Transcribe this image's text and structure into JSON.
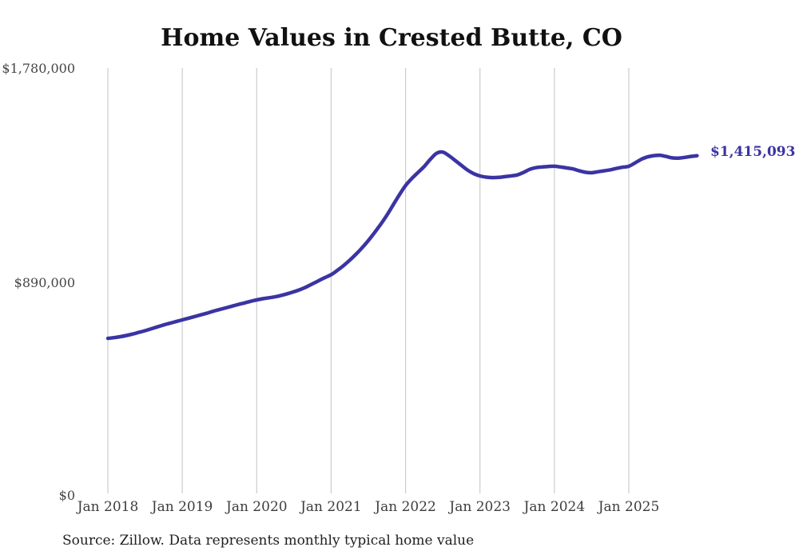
{
  "chart_data": {
    "type": "line",
    "title": "Home Values in Crested Butte, CO",
    "source": "Source: Zillow. Data represents monthly typical home value",
    "latest_value_label": "$1,415,093",
    "x_tick_labels": [
      "Jan 2018",
      "Jan 2019",
      "Jan 2020",
      "Jan 2021",
      "Jan 2022",
      "Jan 2023",
      "Jan 2024",
      "Jan 2025"
    ],
    "y_tick_labels": [
      "$1,780,000",
      "$890,000",
      "$0"
    ],
    "y_tick_values": [
      1780000,
      890000,
      0
    ],
    "ylim": [
      0,
      1780000
    ],
    "grid": "vertical-only",
    "legend": "none",
    "line_color": "#3a34a3",
    "gridline_color": "#cccccc",
    "series": [
      {
        "name": "Monthly typical home value",
        "start": "Jan 2018",
        "frequency": "monthly",
        "values": [
          655000,
          658000,
          662000,
          667000,
          673000,
          680000,
          687000,
          695000,
          703000,
          711000,
          718000,
          725000,
          732000,
          739000,
          746000,
          753000,
          760000,
          768000,
          775000,
          782000,
          789000,
          796000,
          802000,
          809000,
          815000,
          820000,
          824000,
          828000,
          834000,
          841000,
          849000,
          858000,
          869000,
          882000,
          895000,
          908000,
          920000,
          938000,
          958000,
          980000,
          1005000,
          1032000,
          1062000,
          1095000,
          1130000,
          1168000,
          1210000,
          1252000,
          1291000,
          1320000,
          1345000,
          1370000,
          1400000,
          1425000,
          1430000,
          1415000,
          1395000,
          1375000,
          1355000,
          1340000,
          1331000,
          1326000,
          1324000,
          1325000,
          1328000,
          1331000,
          1335000,
          1345000,
          1358000,
          1365000,
          1368000,
          1370000,
          1371000,
          1368000,
          1364000,
          1360000,
          1352000,
          1346000,
          1344000,
          1348000,
          1352000,
          1356000,
          1362000,
          1367000,
          1371000,
          1385000,
          1400000,
          1410000,
          1415000,
          1417000,
          1412000,
          1406000,
          1405000,
          1408000,
          1412000,
          1415093
        ]
      }
    ]
  }
}
